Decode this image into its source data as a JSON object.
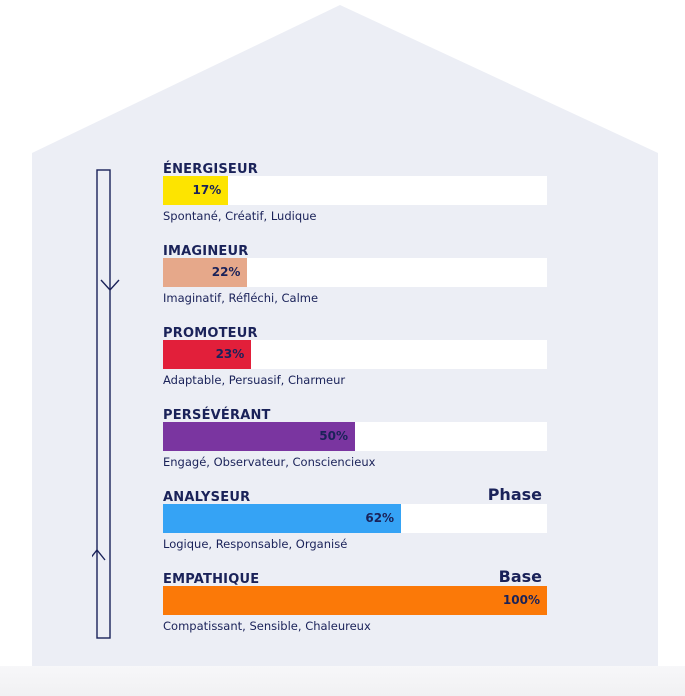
{
  "chart_data": {
    "type": "bar",
    "orientation": "horizontal",
    "xlim": [
      0,
      100
    ],
    "unit": "%",
    "categories": [
      "ÉNERGISEUR",
      "IMAGINEUR",
      "PROMOTEUR",
      "PERSÉVÉRANT",
      "ANALYSEUR",
      "EMPATHIQUE"
    ],
    "values": [
      17,
      22,
      23,
      50,
      62,
      100
    ],
    "value_labels": [
      "17%",
      "22%",
      "23%",
      "50%",
      "62%",
      "100%"
    ],
    "traits": [
      "Spontané, Créatif, Ludique",
      "Imaginatif, Réfléchi, Calme",
      "Adaptable, Persuasif, Charmeur",
      "Engagé, Observateur, Consciencieux",
      "Logique, Responsable, Organisé",
      "Compatissant, Sensible, Chaleureux"
    ],
    "tags": [
      "",
      "",
      "",
      "",
      "Phase",
      "Base"
    ],
    "colors": [
      "#fde400",
      "#e6a88a",
      "#e21f3a",
      "#7a35a0",
      "#35a3f5",
      "#fb7908"
    ],
    "track_color": "#ffffff",
    "text_color": "#1a2259",
    "background_color": "#eceef5"
  }
}
